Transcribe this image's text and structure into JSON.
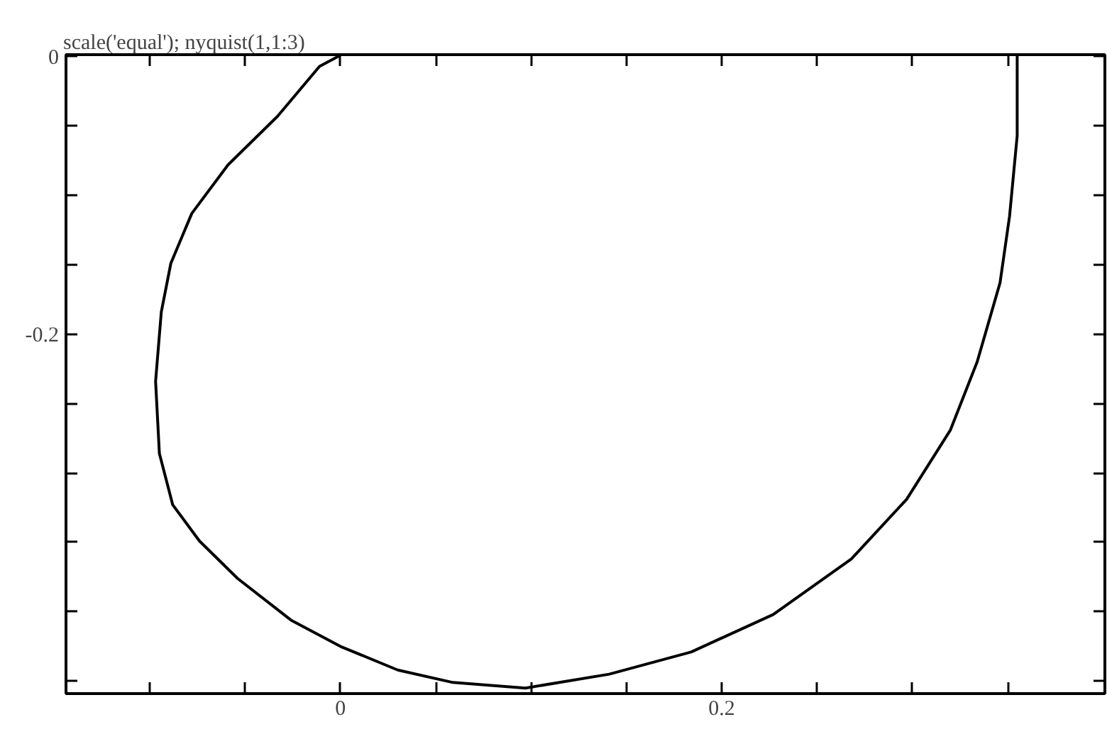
{
  "chart_data": {
    "type": "line",
    "title": "scale('equal'); nyquist(1,1:3)",
    "x": [
      0.355,
      0.355,
      0.351,
      0.346,
      0.334,
      0.32,
      0.297,
      0.268,
      0.227,
      0.184,
      0.141,
      0.097,
      0.059,
      0.03,
      0.0,
      -0.026,
      -0.054,
      -0.074,
      -0.088,
      -0.095,
      -0.097,
      -0.094,
      -0.089,
      -0.078,
      -0.059,
      -0.033,
      -0.011,
      0.0
    ],
    "series": [
      {
        "color": "#000000",
        "values": [
          0.001,
          -0.057,
          -0.115,
          -0.163,
          -0.22,
          -0.269,
          -0.319,
          -0.362,
          -0.402,
          -0.429,
          -0.445,
          -0.455,
          -0.451,
          -0.442,
          -0.425,
          -0.406,
          -0.376,
          -0.349,
          -0.323,
          -0.286,
          -0.234,
          -0.184,
          -0.149,
          -0.113,
          -0.078,
          -0.043,
          -0.007,
          0.001
        ]
      }
    ],
    "xlim": [
      -0.144,
      0.401
    ],
    "ylim": [
      -0.459,
      0.0014
    ],
    "xticks": [
      {
        "value": -0.1,
        "label": null
      },
      {
        "value": -0.05,
        "label": null
      },
      0,
      {
        "value": 0.05,
        "label": null
      },
      {
        "value": 0.1,
        "label": null
      },
      {
        "value": 0.15,
        "label": null
      },
      0.2,
      {
        "value": 0.25,
        "label": null
      },
      {
        "value": 0.3,
        "label": null
      },
      {
        "value": 0.35,
        "label": null
      }
    ],
    "yticks": [
      {
        "value": -0.45,
        "label": null
      },
      {
        "value": -0.4,
        "label": null
      },
      {
        "value": -0.35,
        "label": null
      },
      {
        "value": -0.3,
        "label": null
      },
      {
        "value": -0.25,
        "label": null
      },
      -0.2,
      {
        "value": -0.15,
        "label": null
      },
      {
        "value": -0.1,
        "label": null
      },
      {
        "value": -0.05,
        "label": null
      },
      0
    ],
    "grid": false,
    "marker": "none",
    "line_style": "solid"
  }
}
